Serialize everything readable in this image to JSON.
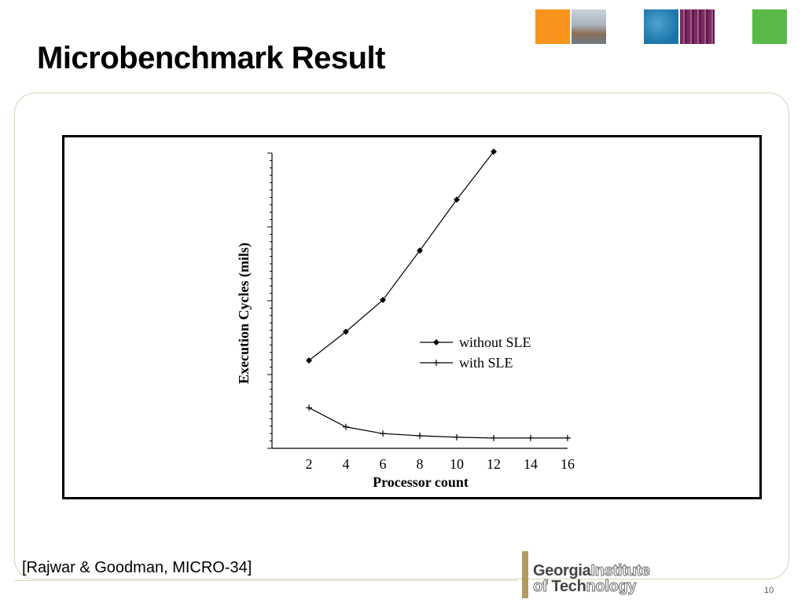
{
  "slide": {
    "title": "Microbenchmark Result",
    "citation": "[Rajwar & Goodman, MICRO-34]",
    "page_number": "10",
    "header_swatches": [
      {
        "name": "orange-swatch",
        "color": "#f7941d"
      },
      {
        "name": "campus-photo-swatch",
        "color": "#9aa7b3"
      },
      {
        "name": "blue-swatch",
        "color": "#1b75a8"
      },
      {
        "name": "circuit-photo-swatch",
        "color": "#7b2b63"
      },
      {
        "name": "green-swatch",
        "color": "#58b947"
      }
    ],
    "logo": {
      "line1_strong": "Georgia",
      "line1_outline": "Institute",
      "line2_outline_a": "of ",
      "line2_strong": "Tech",
      "line2_outline_b": "nology"
    }
  },
  "chart_data": {
    "type": "line",
    "title": "",
    "xlabel": "Processor count",
    "ylabel": "Execution Cycles (mils)",
    "x": [
      2,
      4,
      6,
      8,
      10,
      12,
      14,
      16
    ],
    "xlim": [
      0,
      16
    ],
    "ylim": [
      0,
      40
    ],
    "y_tick_labels_shown": false,
    "legend_position": "center-right",
    "series": [
      {
        "name": "without SLE",
        "marker": "diamond",
        "color": "#000000",
        "x": [
          2,
          4,
          6,
          8,
          10,
          12
        ],
        "y": [
          11.9,
          15.8,
          20.1,
          26.8,
          33.7,
          40.2
        ]
      },
      {
        "name": "with SLE",
        "marker": "plus",
        "color": "#000000",
        "x": [
          2,
          4,
          6,
          8,
          10,
          12,
          14,
          16
        ],
        "y": [
          5.5,
          2.9,
          2.0,
          1.7,
          1.5,
          1.4,
          1.4,
          1.4
        ]
      }
    ]
  }
}
